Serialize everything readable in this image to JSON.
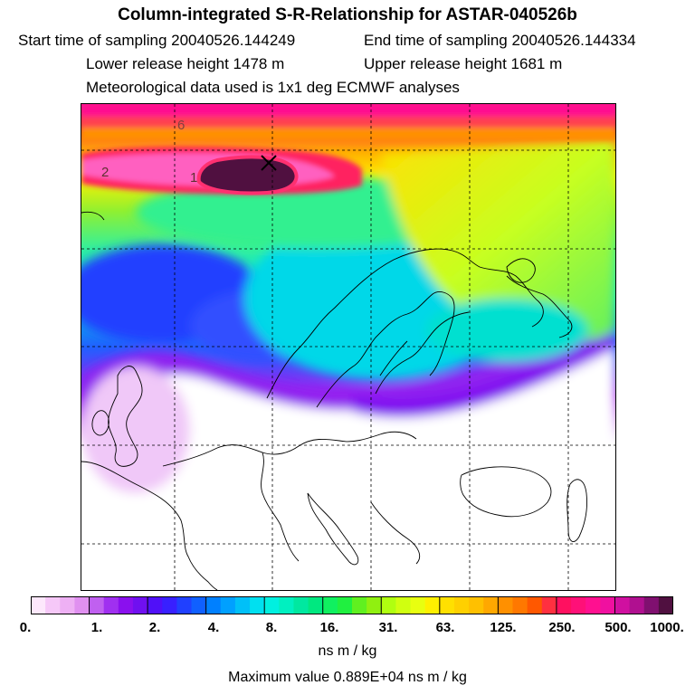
{
  "header": {
    "title": "Column-integrated S-R-Relationship for ASTAR-040526b",
    "start_sampling": "Start time of sampling 20040526.144249",
    "end_sampling": "End time of sampling 20040526.144334",
    "lower_release": "Lower release height 1478 m",
    "upper_release": "Upper release height 1681 m",
    "met_data": "Meteorological data used is 1x1 deg ECMWF analyses"
  },
  "map": {
    "contour_labels": [
      "6",
      "2",
      "1"
    ],
    "colors": {
      "white": "#ffffff",
      "lavender": "#f0c8f8",
      "violet": "#a020f0",
      "blue": "#2040ff",
      "cyan": "#00e0e0",
      "green": "#20f060",
      "yellow_green": "#c8ff20",
      "yellow": "#ffe000",
      "orange": "#ffa000",
      "red": "#ff2040",
      "magenta": "#ff1090",
      "dark_purple": "#501040"
    }
  },
  "colorbar": {
    "ticks": [
      "0.",
      "1.",
      "2.",
      "4.",
      "8.",
      "16.",
      "31.",
      "63.",
      "125.",
      "250.",
      "500.",
      "1000."
    ],
    "colors": [
      "#fde8fc",
      "#f6c8f8",
      "#eeb0f4",
      "#e090f0",
      "#c060f0",
      "#a030f0",
      "#8a10ee",
      "#7010f0",
      "#5010f8",
      "#3820ff",
      "#2040ff",
      "#1060ff",
      "#0080ff",
      "#00a0ff",
      "#00c0f8",
      "#00e0f0",
      "#00f0e0",
      "#00f0c0",
      "#00e8a0",
      "#00e880",
      "#10f060",
      "#20f040",
      "#60f020",
      "#90f010",
      "#b0ff10",
      "#d0ff10",
      "#e8ff10",
      "#fff000",
      "#ffe000",
      "#ffd000",
      "#ffc000",
      "#ffa800",
      "#ff9000",
      "#ff7800",
      "#ff5800",
      "#ff3040",
      "#ff1060",
      "#ff1078",
      "#ff1090",
      "#f010a0",
      "#d010a0",
      "#b01090",
      "#801070",
      "#501040"
    ],
    "unit": "ns m / kg"
  },
  "footer": {
    "max_value": "Maximum value  0.889E+04 ns m / kg"
  }
}
